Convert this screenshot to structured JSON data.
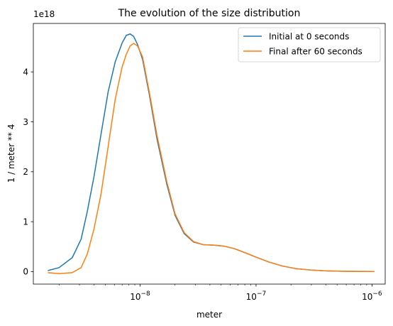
{
  "chart_data": {
    "type": "line",
    "title": "The evolution of the size distribution",
    "xlabel": "meter",
    "ylabel": "1 / meter ** 4",
    "y_offset_label": "1e18",
    "x_scale": "log",
    "xlim": [
      1.2e-09,
      1.3e-06
    ],
    "ylim": [
      -0.25,
      4.97
    ],
    "y_unit_multiplier": 1e+18,
    "x_ticks": [
      {
        "value": 1e-08,
        "base": "10",
        "exp": "−8"
      },
      {
        "value": 1e-07,
        "base": "10",
        "exp": "−7"
      },
      {
        "value": 1e-06,
        "base": "10",
        "exp": "−6"
      }
    ],
    "y_ticks": [
      {
        "value": 0,
        "label": "0"
      },
      {
        "value": 1,
        "label": "1"
      },
      {
        "value": 2,
        "label": "2"
      },
      {
        "value": 3,
        "label": "3"
      },
      {
        "value": 4,
        "label": "4"
      }
    ],
    "grid": false,
    "legend_position": "top-right",
    "series": [
      {
        "name": "Initial at 0 seconds",
        "color": "#1f77b4",
        "x": [
          1.6e-09,
          2e-09,
          2.6e-09,
          3.1e-09,
          3.5e-09,
          4e-09,
          4.6e-09,
          5.3e-09,
          6.1e-09,
          7e-09,
          7.6e-09,
          8.2e-09,
          8.8e-09,
          9.5e-09,
          1.05e-08,
          1.2e-08,
          1.4e-08,
          1.7e-08,
          2e-08,
          2.4e-08,
          2.9e-08,
          3.5e-08,
          4.3e-08,
          5.3e-08,
          6.5e-08,
          8e-08,
          1e-07,
          1.3e-07,
          1.7e-07,
          2.2e-07,
          3e-07,
          4e-07,
          5.5e-07,
          7.5e-07,
          1.05e-06
        ],
        "y": [
          0.02,
          0.08,
          0.28,
          0.65,
          1.2,
          1.9,
          2.75,
          3.6,
          4.2,
          4.58,
          4.73,
          4.76,
          4.71,
          4.55,
          4.25,
          3.55,
          2.65,
          1.75,
          1.13,
          0.76,
          0.59,
          0.54,
          0.53,
          0.51,
          0.46,
          0.38,
          0.29,
          0.19,
          0.11,
          0.06,
          0.03,
          0.015,
          0.008,
          0.004,
          0.002
        ]
      },
      {
        "name": "Final after 60 seconds",
        "color": "#ff7f0e",
        "x": [
          1.6e-09,
          2e-09,
          2.6e-09,
          3.1e-09,
          3.5e-09,
          4e-09,
          4.6e-09,
          5.3e-09,
          6.1e-09,
          7e-09,
          7.6e-09,
          8.2e-09,
          8.8e-09,
          9.5e-09,
          1.05e-08,
          1.2e-08,
          1.4e-08,
          1.7e-08,
          2e-08,
          2.4e-08,
          2.9e-08,
          3.5e-08,
          4.3e-08,
          5.3e-08,
          6.5e-08,
          8e-08,
          1e-07,
          1.3e-07,
          1.7e-07,
          2.2e-07,
          3e-07,
          4e-07,
          5.5e-07,
          7.5e-07,
          1.05e-06
        ],
        "y": [
          -0.02,
          -0.04,
          -0.02,
          0.08,
          0.35,
          0.85,
          1.55,
          2.5,
          3.45,
          4.1,
          4.35,
          4.52,
          4.57,
          4.52,
          4.3,
          3.6,
          2.72,
          1.8,
          1.16,
          0.78,
          0.6,
          0.54,
          0.53,
          0.51,
          0.46,
          0.38,
          0.29,
          0.19,
          0.11,
          0.06,
          0.03,
          0.015,
          0.008,
          0.004,
          0.002
        ]
      }
    ]
  }
}
